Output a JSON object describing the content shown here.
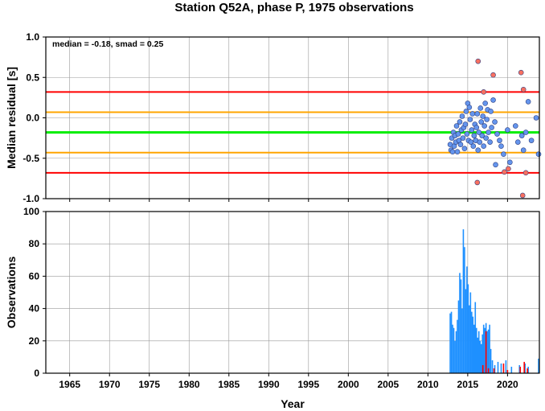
{
  "chart_data": [
    {
      "type": "scatter",
      "title": "Station Q52A, phase P, 1975 observations",
      "xlabel": "",
      "ylabel": "Median residual [s]",
      "xlim": [
        1962,
        2024
      ],
      "ylim": [
        -1.0,
        1.0
      ],
      "xticks": [
        "1965",
        "1970",
        "1975",
        "1980",
        "1985",
        "1990",
        "1995",
        "2000",
        "2005",
        "2010",
        "2015",
        "2020"
      ],
      "yticks": [
        "-1.0",
        "-0.5",
        "0.0",
        "0.5",
        "1.0"
      ],
      "grid": true,
      "annotation": "median = -0.18, smad = 0.25",
      "reference_lines": [
        {
          "y": 0.32,
          "color": "#ff0000"
        },
        {
          "y": 0.07,
          "color": "#ffa500"
        },
        {
          "y": -0.18,
          "color": "#00ee00"
        },
        {
          "y": -0.43,
          "color": "#ffa500"
        },
        {
          "y": -0.68,
          "color": "#ff0000"
        }
      ],
      "series": [
        {
          "color": "#6495ed",
          "points": [
            [
              2012.8,
              -0.33
            ],
            [
              2012.9,
              -0.4
            ],
            [
              2013.0,
              -0.25
            ],
            [
              2013.1,
              -0.42
            ],
            [
              2013.2,
              -0.18
            ],
            [
              2013.3,
              -0.35
            ],
            [
              2013.4,
              -0.22
            ],
            [
              2013.5,
              -0.3
            ],
            [
              2013.6,
              -0.1
            ],
            [
              2013.7,
              -0.42
            ],
            [
              2013.8,
              -0.2
            ],
            [
              2013.9,
              -0.28
            ],
            [
              2014.0,
              -0.05
            ],
            [
              2014.1,
              -0.33
            ],
            [
              2014.2,
              -0.15
            ],
            [
              2014.3,
              0.02
            ],
            [
              2014.4,
              -0.25
            ],
            [
              2014.5,
              -0.12
            ],
            [
              2014.6,
              -0.38
            ],
            [
              2014.7,
              -0.08
            ],
            [
              2014.8,
              0.08
            ],
            [
              2014.9,
              -0.2
            ],
            [
              2015.0,
              0.18
            ],
            [
              2015.1,
              -0.28
            ],
            [
              2015.2,
              0.13
            ],
            [
              2015.3,
              -0.02
            ],
            [
              2015.4,
              -0.3
            ],
            [
              2015.5,
              -0.15
            ],
            [
              2015.6,
              0.05
            ],
            [
              2015.7,
              -0.35
            ],
            [
              2015.8,
              -0.22
            ],
            [
              2015.9,
              -0.08
            ],
            [
              2016.0,
              -0.28
            ],
            [
              2016.1,
              -0.12
            ],
            [
              2016.2,
              0.05
            ],
            [
              2016.3,
              -0.4
            ],
            [
              2016.4,
              -0.18
            ],
            [
              2016.5,
              -0.3
            ],
            [
              2016.6,
              0.12
            ],
            [
              2016.7,
              -0.05
            ],
            [
              2016.8,
              -0.22
            ],
            [
              2016.9,
              0.02
            ],
            [
              2017.0,
              -0.35
            ],
            [
              2017.1,
              -0.1
            ],
            [
              2017.2,
              0.18
            ],
            [
              2017.3,
              -0.25
            ],
            [
              2017.4,
              -0.02
            ],
            [
              2017.5,
              0.1
            ],
            [
              2017.6,
              -0.18
            ],
            [
              2017.8,
              -0.3
            ],
            [
              2017.9,
              0.08
            ],
            [
              2018.0,
              -0.12
            ],
            [
              2018.2,
              0.22
            ],
            [
              2018.4,
              -0.05
            ],
            [
              2018.5,
              -0.58
            ],
            [
              2018.7,
              -0.2
            ],
            [
              2019.0,
              -0.28
            ],
            [
              2019.2,
              -0.35
            ],
            [
              2019.5,
              -0.45
            ],
            [
              2020.0,
              -0.15
            ],
            [
              2020.3,
              -0.55
            ],
            [
              2021.0,
              -0.1
            ],
            [
              2021.3,
              -0.3
            ],
            [
              2021.8,
              -0.22
            ],
            [
              2022.0,
              -0.4
            ],
            [
              2022.3,
              -0.18
            ],
            [
              2022.6,
              0.2
            ],
            [
              2023.0,
              -0.28
            ],
            [
              2023.6,
              0.0
            ],
            [
              2023.9,
              -0.45
            ]
          ]
        },
        {
          "color": "#f87060",
          "points": [
            [
              2016.3,
              0.7
            ],
            [
              2016.2,
              -0.8
            ],
            [
              2017.0,
              0.32
            ],
            [
              2018.2,
              0.53
            ],
            [
              2019.6,
              -0.67
            ],
            [
              2020.1,
              -0.63
            ],
            [
              2021.7,
              0.56
            ],
            [
              2022.0,
              0.35
            ],
            [
              2022.3,
              -0.68
            ],
            [
              2021.9,
              -0.96
            ]
          ]
        }
      ]
    },
    {
      "type": "bar",
      "title": "",
      "xlabel": "Year",
      "ylabel": "Observations",
      "xlim": [
        1962,
        2024
      ],
      "ylim": [
        0,
        100
      ],
      "xticks": [
        "1965",
        "1970",
        "1975",
        "1980",
        "1985",
        "1990",
        "1995",
        "2000",
        "2005",
        "2010",
        "2015",
        "2020"
      ],
      "yticks": [
        "0",
        "20",
        "40",
        "60",
        "80",
        "100"
      ],
      "grid": true,
      "series": [
        {
          "color": "#1e90ff",
          "points": [
            [
              2012.8,
              37
            ],
            [
              2012.95,
              38
            ],
            [
              2013.1,
              30
            ],
            [
              2013.25,
              28
            ],
            [
              2013.4,
              20
            ],
            [
              2013.55,
              26
            ],
            [
              2013.7,
              33
            ],
            [
              2013.85,
              45
            ],
            [
              2014.0,
              62
            ],
            [
              2014.15,
              58
            ],
            [
              2014.3,
              40
            ],
            [
              2014.45,
              89
            ],
            [
              2014.6,
              78
            ],
            [
              2014.75,
              52
            ],
            [
              2014.9,
              66
            ],
            [
              2015.05,
              55
            ],
            [
              2015.2,
              42
            ],
            [
              2015.35,
              50
            ],
            [
              2015.5,
              38
            ],
            [
              2015.65,
              35
            ],
            [
              2015.8,
              30
            ],
            [
              2015.95,
              44
            ],
            [
              2016.1,
              28
            ],
            [
              2016.25,
              22
            ],
            [
              2016.4,
              26
            ],
            [
              2016.55,
              20
            ],
            [
              2016.7,
              18
            ],
            [
              2016.85,
              24
            ],
            [
              2017.0,
              30
            ],
            [
              2017.15,
              28
            ],
            [
              2017.3,
              31
            ],
            [
              2017.45,
              26
            ],
            [
              2017.6,
              27
            ],
            [
              2017.75,
              30
            ],
            [
              2017.9,
              15
            ],
            [
              2018.1,
              8
            ],
            [
              2018.4,
              5
            ],
            [
              2018.8,
              7
            ],
            [
              2019.2,
              6
            ],
            [
              2019.8,
              8
            ],
            [
              2020.5,
              4
            ],
            [
              2021.5,
              5
            ],
            [
              2022.2,
              6
            ],
            [
              2022.6,
              4
            ],
            [
              2023.9,
              9
            ]
          ]
        },
        {
          "color": "#ff0000",
          "points": [
            [
              2016.9,
              5
            ],
            [
              2017.3,
              26
            ],
            [
              2017.6,
              3
            ],
            [
              2018.3,
              3
            ],
            [
              2019.5,
              6
            ],
            [
              2020.0,
              2
            ],
            [
              2021.6,
              4
            ],
            [
              2022.1,
              7
            ],
            [
              2022.5,
              3
            ]
          ]
        }
      ]
    }
  ]
}
